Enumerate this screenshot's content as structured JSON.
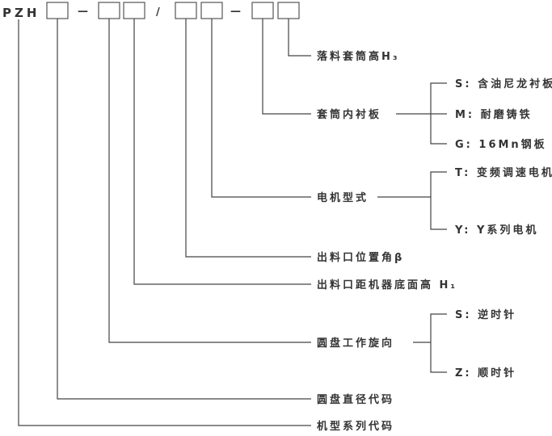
{
  "prefix": "PZH",
  "separators": [
    "—",
    "/",
    "—"
  ],
  "fields": [
    {
      "label": "落料套筒高H₃"
    },
    {
      "label": "套筒内衬板",
      "options": [
        "S: 含油尼龙衬板",
        "M: 耐磨铸铁",
        "G: 16Mn钢板"
      ]
    },
    {
      "label": "电机型式",
      "options": [
        "T: 变频调速电机",
        "Y: Y系列电机"
      ]
    },
    {
      "label": "出料口位置角β"
    },
    {
      "label": "出料口距机器底面高 H₁"
    },
    {
      "label": "圆盘工作旋向",
      "options": [
        "S: 逆时针",
        "Z: 顺时针"
      ]
    },
    {
      "label": "圆盘直径代码"
    },
    {
      "label": "机型系列代码"
    }
  ]
}
